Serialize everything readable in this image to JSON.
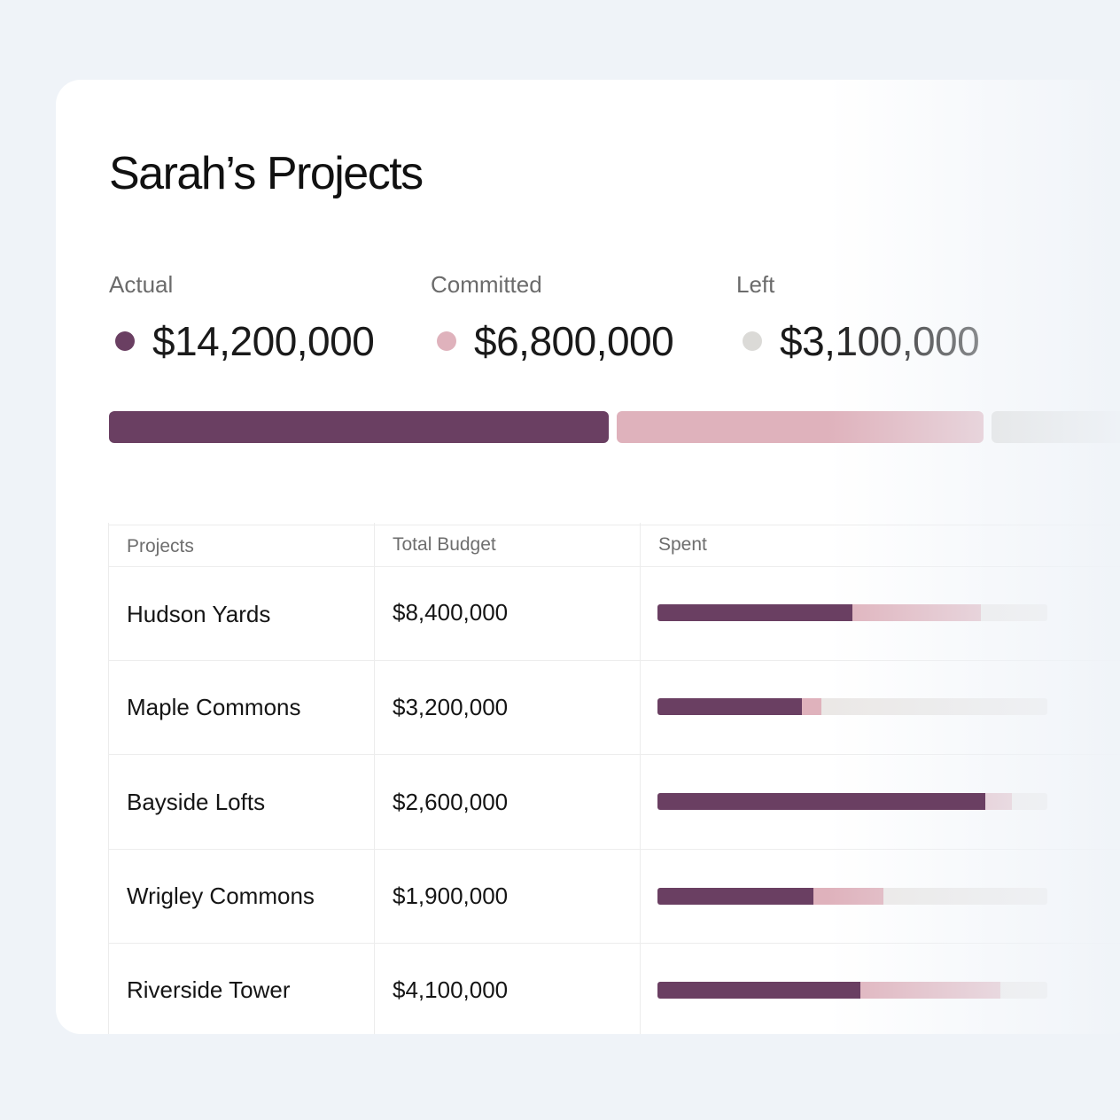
{
  "title": "Sarah’s Projects",
  "colors": {
    "actual": "#6a3f62",
    "committed": "#dfb2bc",
    "left": "#dbdad7",
    "track": "#ebe8e6"
  },
  "summary": [
    {
      "label": "Actual",
      "value": "$14,200,000",
      "amount": 14200000,
      "color": "#6a3f62"
    },
    {
      "label": "Committed",
      "value": "$6,800,000",
      "amount": 6800000,
      "color": "#dfb2bc"
    },
    {
      "label": "Left",
      "value": "$3,100,000",
      "amount": 3100000,
      "color": "#dbdad7"
    }
  ],
  "table": {
    "headers": [
      "Projects",
      "Total Budget",
      "Spent"
    ],
    "rows": [
      {
        "name": "Hudson Yards",
        "budget": "$8,400,000",
        "actual_pct": 50,
        "committed_pct": 33
      },
      {
        "name": "Maple Commons",
        "budget": "$3,200,000",
        "actual_pct": 37,
        "committed_pct": 5
      },
      {
        "name": "Bayside Lofts",
        "budget": "$2,600,000",
        "actual_pct": 84,
        "committed_pct": 7
      },
      {
        "name": "Wrigley Commons",
        "budget": "$1,900,000",
        "actual_pct": 40,
        "committed_pct": 18
      },
      {
        "name": "Riverside Tower",
        "budget": "$4,100,000",
        "actual_pct": 52,
        "committed_pct": 36
      }
    ]
  }
}
